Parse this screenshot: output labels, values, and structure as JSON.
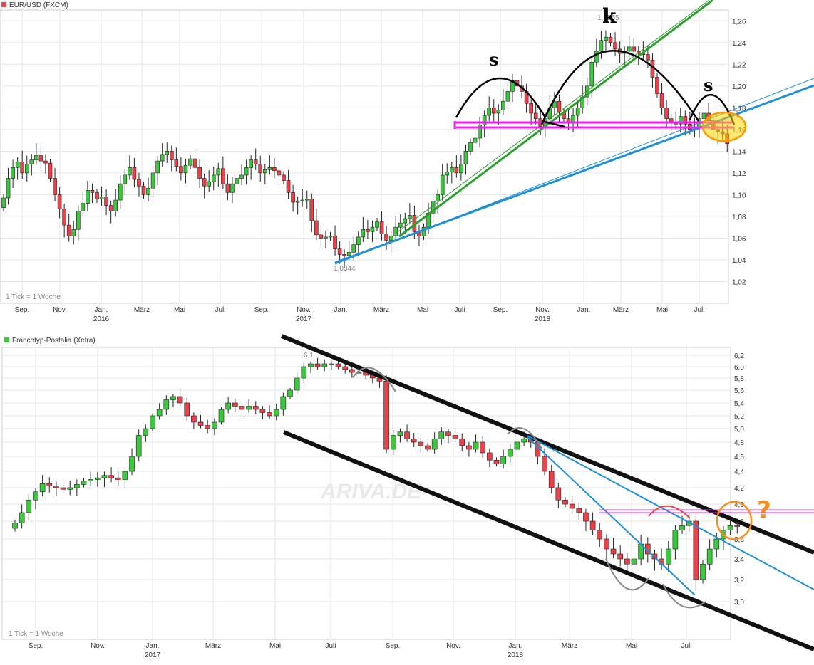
{
  "chart_data": [
    {
      "type": "candlestick",
      "title": "EUR/USD (FXCM)",
      "legend_color": "#e8434b",
      "interval_note": "1 Tick = 1 Woche",
      "ylim": [
        1.0,
        1.27
      ],
      "yticks": [
        "1,26",
        "1,24",
        "1,22",
        "1,20",
        "1,18",
        "1,16",
        "1,14",
        "1,12",
        "1,10",
        "1,08",
        "1,06",
        "1,04",
        "1,02"
      ],
      "ytick_values": [
        1.26,
        1.24,
        1.22,
        1.2,
        1.18,
        1.16,
        1.14,
        1.12,
        1.1,
        1.08,
        1.06,
        1.04,
        1.02
      ],
      "months": [
        "Sep.",
        "Nov.",
        "Jan.",
        "März",
        "Mai",
        "Juli",
        "Sep.",
        "Nov.",
        "Jan.",
        "März",
        "Mai",
        "Juli",
        "Sep.",
        "Nov.",
        "Jan.",
        "März",
        "Mai",
        "Juli"
      ],
      "years": [
        "2016",
        "2017",
        "2018"
      ],
      "low_label": "1,0344",
      "high_label": "1,2555",
      "annotations": {
        "left_shoulder": "s",
        "head": "k",
        "right_shoulder": "s"
      },
      "weekly_closes": [
        1.097,
        1.115,
        1.125,
        1.13,
        1.12,
        1.128,
        1.132,
        1.136,
        1.131,
        1.129,
        1.115,
        1.1,
        1.087,
        1.072,
        1.062,
        1.068,
        1.085,
        1.092,
        1.104,
        1.102,
        1.096,
        1.098,
        1.09,
        1.085,
        1.095,
        1.11,
        1.118,
        1.125,
        1.114,
        1.108,
        1.1,
        1.106,
        1.12,
        1.131,
        1.137,
        1.14,
        1.132,
        1.126,
        1.12,
        1.127,
        1.133,
        1.125,
        1.115,
        1.108,
        1.112,
        1.118,
        1.124,
        1.11,
        1.102,
        1.11,
        1.115,
        1.118,
        1.125,
        1.132,
        1.128,
        1.12,
        1.123,
        1.125,
        1.122,
        1.118,
        1.113,
        1.102,
        1.093,
        1.094,
        1.095,
        1.096,
        1.076,
        1.063,
        1.06,
        1.061,
        1.062,
        1.05,
        1.045,
        1.044,
        1.047,
        1.054,
        1.061,
        1.068,
        1.066,
        1.07,
        1.075,
        1.064,
        1.058,
        1.062,
        1.07,
        1.074,
        1.078,
        1.081,
        1.066,
        1.062,
        1.07,
        1.083,
        1.094,
        1.1,
        1.118,
        1.121,
        1.125,
        1.12,
        1.128,
        1.14,
        1.148,
        1.152,
        1.164,
        1.173,
        1.18,
        1.175,
        1.178,
        1.186,
        1.195,
        1.205,
        1.2,
        1.195,
        1.184,
        1.175,
        1.17,
        1.163,
        1.17,
        1.18,
        1.186,
        1.176,
        1.17,
        1.166,
        1.173,
        1.18,
        1.19,
        1.2,
        1.222,
        1.232,
        1.242,
        1.245,
        1.24,
        1.234,
        1.23,
        1.232,
        1.236,
        1.232,
        1.23,
        1.229,
        1.224,
        1.208,
        1.193,
        1.18,
        1.17,
        1.166,
        1.165,
        1.172,
        1.165,
        1.16,
        1.162,
        1.17,
        1.175,
        1.168,
        1.16,
        1.158,
        1.156,
        1.147
      ]
    },
    {
      "type": "candlestick",
      "title": "Francotyp-Postalia (Xetra)",
      "legend_color": "#3cc83c",
      "interval_note": "1 Tick = 1 Woche",
      "ylim": [
        2.9,
        6.3
      ],
      "yticks": [
        "6,2",
        "6,0",
        "5,8",
        "5,6",
        "5,4",
        "5,2",
        "5,0",
        "4,8",
        "4,6",
        "4,4",
        "4,2",
        "4,0",
        "3,8",
        "3,6",
        "3,4",
        "3,2",
        "3,0"
      ],
      "ytick_values": [
        6.2,
        6.0,
        5.8,
        5.6,
        5.4,
        5.2,
        5.0,
        4.8,
        4.6,
        4.4,
        4.2,
        4.0,
        3.8,
        3.6,
        3.4,
        3.2,
        3.0
      ],
      "months": [
        "Sep.",
        "Nov.",
        "Jan.",
        "März",
        "Mai",
        "Juli",
        "Sep.",
        "Nov.",
        "Jan.",
        "März",
        "Mai",
        "Juli"
      ],
      "years": [
        "2017",
        "2018"
      ],
      "high_label": "6,1",
      "watermark": "ARIVA.DE",
      "question_mark": "?",
      "weekly_closes": [
        3.78,
        3.9,
        4.05,
        4.15,
        4.25,
        4.22,
        4.2,
        4.18,
        4.2,
        4.24,
        4.28,
        4.3,
        4.32,
        4.35,
        4.32,
        4.3,
        4.4,
        4.6,
        4.9,
        5.0,
        5.2,
        5.3,
        5.45,
        5.5,
        5.4,
        5.2,
        5.1,
        5.05,
        5.0,
        5.1,
        5.3,
        5.4,
        5.35,
        5.3,
        5.35,
        5.3,
        5.25,
        5.2,
        5.3,
        5.5,
        5.6,
        5.8,
        6.0,
        6.05,
        6.0,
        6.05,
        6.05,
        6.0,
        5.95,
        5.9,
        5.9,
        5.85,
        5.8,
        5.75,
        4.7,
        4.9,
        4.95,
        4.85,
        4.8,
        4.75,
        4.7,
        4.85,
        4.95,
        4.9,
        4.85,
        4.75,
        4.7,
        4.8,
        4.65,
        4.55,
        4.5,
        4.6,
        4.7,
        4.8,
        4.85,
        4.8,
        4.6,
        4.4,
        4.2,
        4.05,
        4.0,
        3.95,
        3.9,
        3.8,
        3.7,
        3.6,
        3.5,
        3.45,
        3.4,
        3.35,
        3.4,
        3.55,
        3.45,
        3.4,
        3.35,
        3.5,
        3.7,
        3.75,
        3.8,
        3.2,
        3.35,
        3.5,
        3.6,
        3.7,
        3.75,
        3.74
      ]
    }
  ]
}
